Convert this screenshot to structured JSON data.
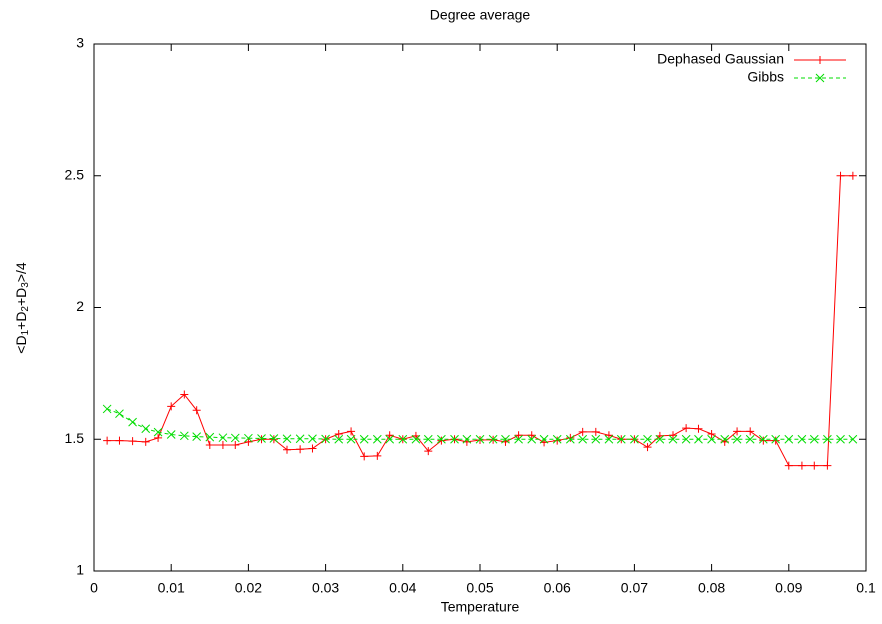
{
  "chart_data": {
    "type": "line",
    "title": "Degree average",
    "xlabel": "Temperature",
    "ylabel": [
      "<D",
      "1",
      "+D",
      "2",
      "+D",
      "3",
      ">/4"
    ],
    "x": [
      0.0017,
      0.0033,
      0.005,
      0.0067,
      0.0083,
      0.01,
      0.0117,
      0.0133,
      0.015,
      0.0167,
      0.0183,
      0.02,
      0.0217,
      0.0233,
      0.025,
      0.0267,
      0.0283,
      0.03,
      0.0317,
      0.0333,
      0.035,
      0.0367,
      0.0383,
      0.04,
      0.0417,
      0.0433,
      0.045,
      0.0467,
      0.0483,
      0.05,
      0.0517,
      0.0533,
      0.055,
      0.0567,
      0.0583,
      0.06,
      0.0617,
      0.0633,
      0.065,
      0.0667,
      0.0683,
      0.07,
      0.0717,
      0.0733,
      0.075,
      0.0767,
      0.0783,
      0.08,
      0.0817,
      0.0833,
      0.085,
      0.0867,
      0.0883,
      0.09,
      0.0917,
      0.0933,
      0.095,
      0.0967,
      0.0983
    ],
    "series": [
      {
        "name": "Dephased Gaussian",
        "color": "#ff0000",
        "marker": "plus",
        "dashed": false,
        "values": [
          1.495,
          1.495,
          1.493,
          1.49,
          1.505,
          1.625,
          1.67,
          1.61,
          1.478,
          1.478,
          1.478,
          1.49,
          1.5,
          1.5,
          1.46,
          1.462,
          1.465,
          1.5,
          1.52,
          1.53,
          1.435,
          1.437,
          1.515,
          1.5,
          1.513,
          1.455,
          1.495,
          1.5,
          1.49,
          1.497,
          1.498,
          1.49,
          1.515,
          1.515,
          1.488,
          1.495,
          1.505,
          1.528,
          1.528,
          1.515,
          1.5,
          1.5,
          1.47,
          1.513,
          1.515,
          1.542,
          1.54,
          1.52,
          1.49,
          1.53,
          1.53,
          1.495,
          1.495,
          1.4,
          1.4,
          1.4,
          1.4,
          2.5,
          2.5
        ]
      },
      {
        "name": "Gibbs",
        "color": "#00dd00",
        "marker": "cross",
        "dashed": true,
        "values": [
          1.615,
          1.597,
          1.565,
          1.54,
          1.527,
          1.518,
          1.513,
          1.51,
          1.508,
          1.506,
          1.505,
          1.504,
          1.503,
          1.503,
          1.502,
          1.502,
          1.502,
          1.501,
          1.5,
          1.5,
          1.5,
          1.5,
          1.5,
          1.5,
          1.5,
          1.5,
          1.5,
          1.5,
          1.5,
          1.5,
          1.5,
          1.5,
          1.5,
          1.5,
          1.5,
          1.5,
          1.5,
          1.5,
          1.5,
          1.5,
          1.5,
          1.5,
          1.5,
          1.5,
          1.5,
          1.5,
          1.5,
          1.5,
          1.5,
          1.5,
          1.5,
          1.5,
          1.5,
          1.5,
          1.5,
          1.5,
          1.5,
          1.5,
          1.5
        ]
      }
    ],
    "xlim": [
      0,
      0.1
    ],
    "xticks": [
      0,
      0.01,
      0.02,
      0.03,
      0.04,
      0.05,
      0.06,
      0.07,
      0.08,
      0.09,
      0.1
    ],
    "ylim": [
      1,
      3
    ],
    "yticks": [
      1,
      1.5,
      2,
      2.5,
      3
    ],
    "grid": false,
    "legend": "top-right"
  }
}
